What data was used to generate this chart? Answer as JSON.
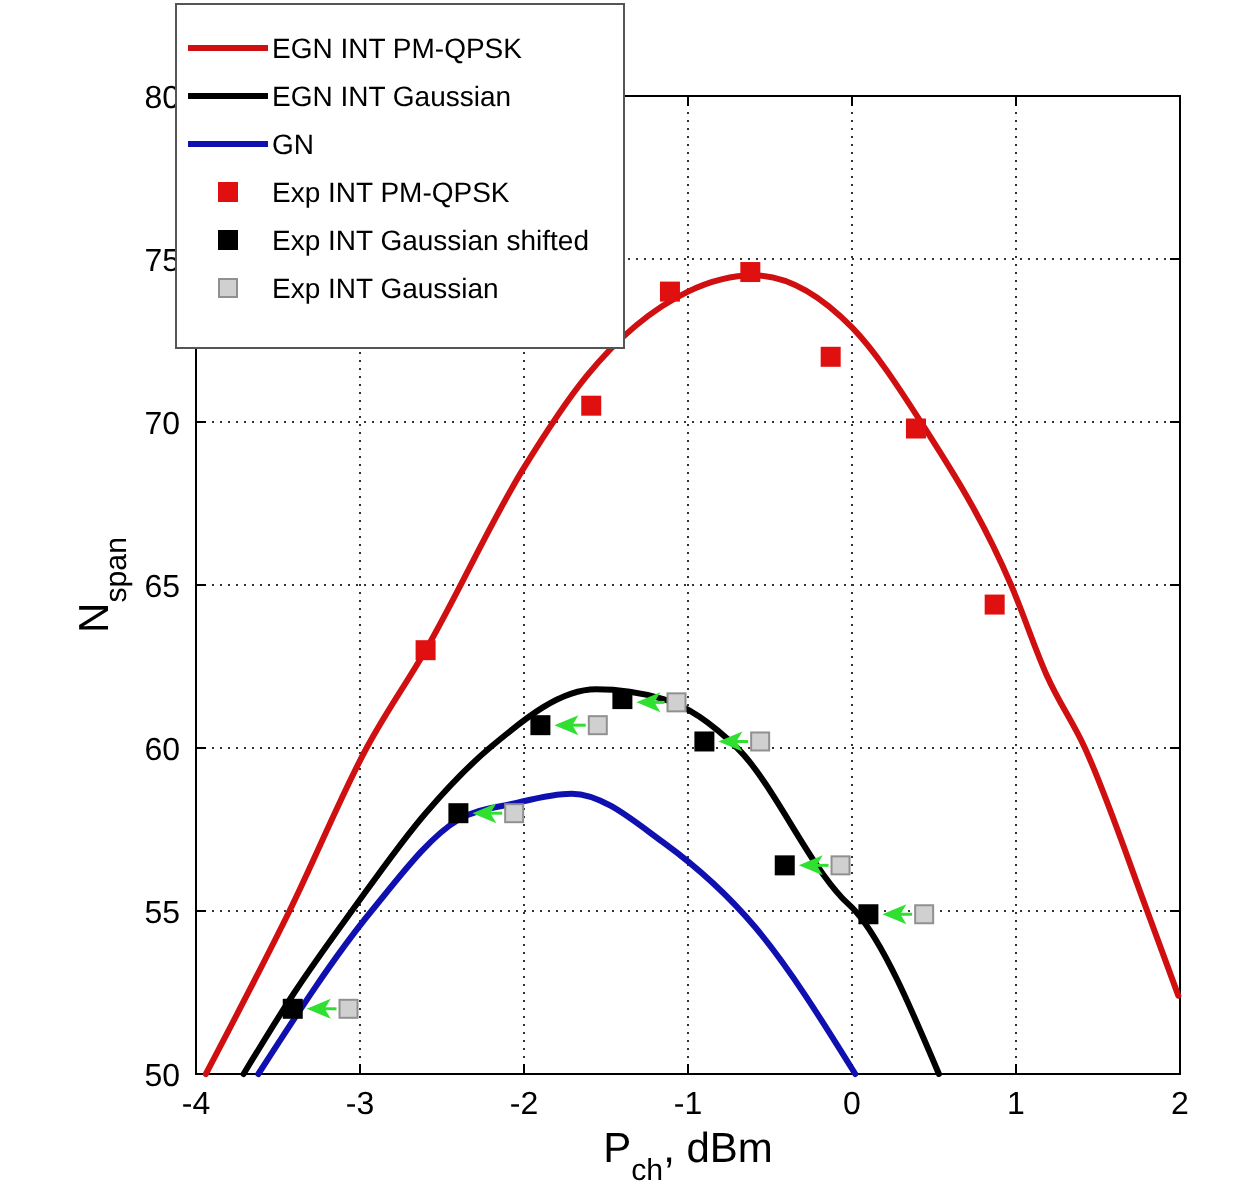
{
  "chart_data": {
    "type": "line",
    "xlabel": "P$_{ch}$,  dBm",
    "ylabel": "N$_{span}$",
    "xlim": [
      -4,
      2
    ],
    "ylim": [
      50,
      80
    ],
    "xticks": [
      -4,
      -3,
      -2,
      -1,
      0,
      1,
      2
    ],
    "yticks": [
      50,
      55,
      60,
      65,
      70,
      75,
      80
    ],
    "grid": true,
    "legend": "top left",
    "line_style": "solid",
    "series": [
      {
        "name": "EGN INT PM-QPSK",
        "color": "#d01010",
        "x": [
          -3.94,
          -3.43,
          -2.96,
          -2.6,
          -2.0,
          -1.62,
          -1.0,
          -0.6,
          0.0,
          0.42,
          0.97,
          1.19,
          1.42,
          1.8,
          1.99
        ],
        "values": [
          50,
          55,
          60,
          63,
          68.6,
          71.4,
          74.0,
          74.5,
          72.9,
          70,
          65,
          62.2,
          60,
          55,
          52.4
        ]
      },
      {
        "name": "EGN INT Gaussian",
        "color": "#000000",
        "x": [
          -3.71,
          -3.4,
          -3.05,
          -2.6,
          -2.21,
          -1.56,
          -1.15,
          -0.7,
          -0.06,
          0.02,
          0.53
        ],
        "values": [
          50,
          52.5,
          55,
          58,
          60,
          61.8,
          61.5,
          60,
          55.4,
          55,
          50
        ]
      },
      {
        "name": "GN",
        "color": "#1010b0",
        "x": [
          -3.62,
          -2.93,
          -2.4,
          -2.06,
          -1.71,
          -1.15,
          -0.59,
          0.02
        ],
        "values": [
          50,
          55,
          57.8,
          58.3,
          58.6,
          57.1,
          54.5,
          50
        ]
      },
      {
        "name": "Exp INT PM-QPSK",
        "type": "scatter",
        "color": "#e01010",
        "marker": "square",
        "x": [
          -2.6,
          -1.59,
          -1.11,
          -0.62,
          -0.13,
          0.39,
          0.87
        ],
        "values": [
          63.0,
          70.5,
          74.0,
          74.6,
          72.0,
          69.8,
          64.4
        ]
      },
      {
        "name": "Exp INT Gaussian shifted",
        "type": "scatter",
        "color": "#000000",
        "marker": "square",
        "x": [
          -3.41,
          -2.4,
          -1.9,
          -1.4,
          -0.9,
          -0.41,
          0.1
        ],
        "values": [
          52.0,
          58.0,
          60.7,
          61.5,
          60.2,
          56.4,
          54.9
        ]
      },
      {
        "name": "Exp INT Gaussian",
        "type": "scatter",
        "color": "#d0d0d0",
        "marker": "square",
        "x": [
          -3.07,
          -2.06,
          -1.55,
          -1.07,
          -0.56,
          -0.07,
          0.44
        ],
        "values": [
          52.0,
          58.0,
          60.7,
          61.4,
          60.2,
          56.4,
          54.9
        ]
      }
    ]
  }
}
